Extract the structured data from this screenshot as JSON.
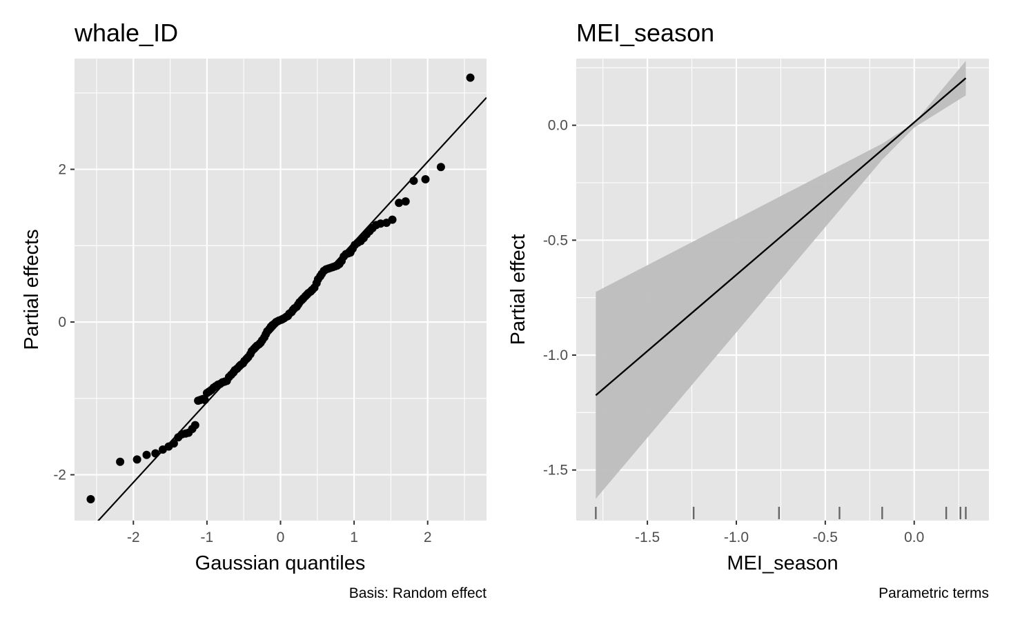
{
  "chart_data": [
    {
      "type": "scatter",
      "title": "whale_ID",
      "xlabel": "Gaussian quantiles",
      "ylabel": "Partial effects",
      "caption": "Basis: Random effect",
      "xlim": [
        -2.8,
        2.8
      ],
      "ylim": [
        -2.6,
        3.45
      ],
      "x_ticks": [
        -2,
        -1,
        0,
        1,
        2
      ],
      "x_tick_labels": [
        "-2",
        "-1",
        "0",
        "1",
        "2"
      ],
      "y_ticks": [
        -2,
        0,
        2
      ],
      "y_tick_labels": [
        "-2",
        "0",
        "2"
      ],
      "grid": true,
      "colors": {
        "panel": "#e5e5e5",
        "grid": "#ffffff",
        "points": "#000000",
        "line": "#000000"
      },
      "reference_line": {
        "slope": 1.05,
        "intercept": 0.0
      },
      "points": [
        [
          -2.58,
          -2.32
        ],
        [
          -2.18,
          -1.83
        ],
        [
          -1.95,
          -1.8
        ],
        [
          -1.82,
          -1.74
        ],
        [
          -1.7,
          -1.72
        ],
        [
          -1.6,
          -1.67
        ],
        [
          -1.52,
          -1.63
        ],
        [
          -1.45,
          -1.59
        ],
        [
          -1.39,
          -1.51
        ],
        [
          -1.34,
          -1.47
        ],
        [
          -1.29,
          -1.46
        ],
        [
          -1.25,
          -1.45
        ],
        [
          -1.2,
          -1.4
        ],
        [
          -1.16,
          -1.35
        ],
        [
          -1.12,
          -1.03
        ],
        [
          -1.09,
          -1.02
        ],
        [
          -1.06,
          -1.01
        ],
        [
          -1.03,
          -1.02
        ],
        [
          -1.0,
          -0.93
        ],
        [
          -0.97,
          -0.91
        ],
        [
          -0.94,
          -0.89
        ],
        [
          -0.91,
          -0.86
        ],
        [
          -0.88,
          -0.84
        ],
        [
          -0.85,
          -0.82
        ],
        [
          -0.82,
          -0.81
        ],
        [
          -0.79,
          -0.79
        ],
        [
          -0.76,
          -0.78
        ],
        [
          -0.73,
          -0.77
        ],
        [
          -0.7,
          -0.72
        ],
        [
          -0.67,
          -0.69
        ],
        [
          -0.64,
          -0.66
        ],
        [
          -0.62,
          -0.63
        ],
        [
          -0.59,
          -0.61
        ],
        [
          -0.56,
          -0.58
        ],
        [
          -0.54,
          -0.56
        ],
        [
          -0.51,
          -0.54
        ],
        [
          -0.49,
          -0.51
        ],
        [
          -0.46,
          -0.48
        ],
        [
          -0.44,
          -0.46
        ],
        [
          -0.41,
          -0.42
        ],
        [
          -0.39,
          -0.38
        ],
        [
          -0.36,
          -0.35
        ],
        [
          -0.34,
          -0.33
        ],
        [
          -0.32,
          -0.31
        ],
        [
          -0.29,
          -0.29
        ],
        [
          -0.27,
          -0.27
        ],
        [
          -0.25,
          -0.24
        ],
        [
          -0.22,
          -0.2
        ],
        [
          -0.2,
          -0.16
        ],
        [
          -0.18,
          -0.12
        ],
        [
          -0.15,
          -0.09
        ],
        [
          -0.13,
          -0.06
        ],
        [
          -0.11,
          -0.04
        ],
        [
          -0.08,
          -0.02
        ],
        [
          -0.06,
          0.0
        ],
        [
          -0.04,
          0.01
        ],
        [
          -0.02,
          0.02
        ],
        [
          0.01,
          0.03
        ],
        [
          0.03,
          0.04
        ],
        [
          0.05,
          0.05
        ],
        [
          0.08,
          0.07
        ],
        [
          0.1,
          0.08
        ],
        [
          0.12,
          0.11
        ],
        [
          0.15,
          0.13
        ],
        [
          0.17,
          0.16
        ],
        [
          0.19,
          0.18
        ],
        [
          0.22,
          0.2
        ],
        [
          0.24,
          0.23
        ],
        [
          0.26,
          0.26
        ],
        [
          0.29,
          0.29
        ],
        [
          0.31,
          0.31
        ],
        [
          0.34,
          0.34
        ],
        [
          0.36,
          0.36
        ],
        [
          0.38,
          0.38
        ],
        [
          0.41,
          0.4
        ],
        [
          0.43,
          0.42
        ],
        [
          0.46,
          0.45
        ],
        [
          0.49,
          0.51
        ],
        [
          0.51,
          0.56
        ],
        [
          0.54,
          0.6
        ],
        [
          0.56,
          0.63
        ],
        [
          0.59,
          0.67
        ],
        [
          0.62,
          0.69
        ],
        [
          0.65,
          0.7
        ],
        [
          0.68,
          0.71
        ],
        [
          0.71,
          0.72
        ],
        [
          0.74,
          0.73
        ],
        [
          0.77,
          0.74
        ],
        [
          0.8,
          0.76
        ],
        [
          0.83,
          0.8
        ],
        [
          0.86,
          0.86
        ],
        [
          0.89,
          0.89
        ],
        [
          0.92,
          0.9
        ],
        [
          0.95,
          0.91
        ],
        [
          0.98,
          0.96
        ],
        [
          1.01,
          1.01
        ],
        [
          1.05,
          1.04
        ],
        [
          1.09,
          1.06
        ],
        [
          1.13,
          1.1
        ],
        [
          1.17,
          1.15
        ],
        [
          1.21,
          1.19
        ],
        [
          1.25,
          1.23
        ],
        [
          1.3,
          1.27
        ],
        [
          1.36,
          1.29
        ],
        [
          1.44,
          1.3
        ],
        [
          1.52,
          1.34
        ],
        [
          1.61,
          1.56
        ],
        [
          1.7,
          1.58
        ],
        [
          1.81,
          1.85
        ],
        [
          1.97,
          1.87
        ],
        [
          2.18,
          2.03
        ],
        [
          2.58,
          3.2
        ]
      ]
    },
    {
      "type": "line",
      "title": "MEI_season",
      "xlabel": "MEI_season",
      "ylabel": "Partial effect",
      "caption": "Parametric terms",
      "xlim": [
        -1.9,
        0.42
      ],
      "ylim": [
        -1.72,
        0.29
      ],
      "x_ticks": [
        -1.5,
        -1.0,
        -0.5,
        0.0
      ],
      "x_tick_labels": [
        "-1.5",
        "-1.0",
        "-0.5",
        "0.0"
      ],
      "y_ticks": [
        -1.5,
        -1.0,
        -0.5,
        0.0
      ],
      "y_tick_labels": [
        "-1.5",
        "-1.0",
        "-0.5",
        "0.0"
      ],
      "grid": true,
      "colors": {
        "panel": "#e5e5e5",
        "grid": "#ffffff",
        "ribbon": "#bdbdbd",
        "line": "#000000",
        "rug": "#666666"
      },
      "x": [
        -1.79,
        0.29
      ],
      "y": [
        -1.175,
        0.205
      ],
      "ribbon": {
        "x": [
          -1.79,
          -0.18,
          0.0,
          0.29
        ],
        "lower": [
          -1.625,
          -0.15,
          -0.01,
          0.13
        ],
        "upper": [
          -0.725,
          -0.08,
          0.01,
          0.28
        ]
      },
      "rug": [
        -1.79,
        -1.24,
        -0.76,
        -0.42,
        -0.18,
        0.18,
        0.26,
        0.29
      ]
    }
  ]
}
